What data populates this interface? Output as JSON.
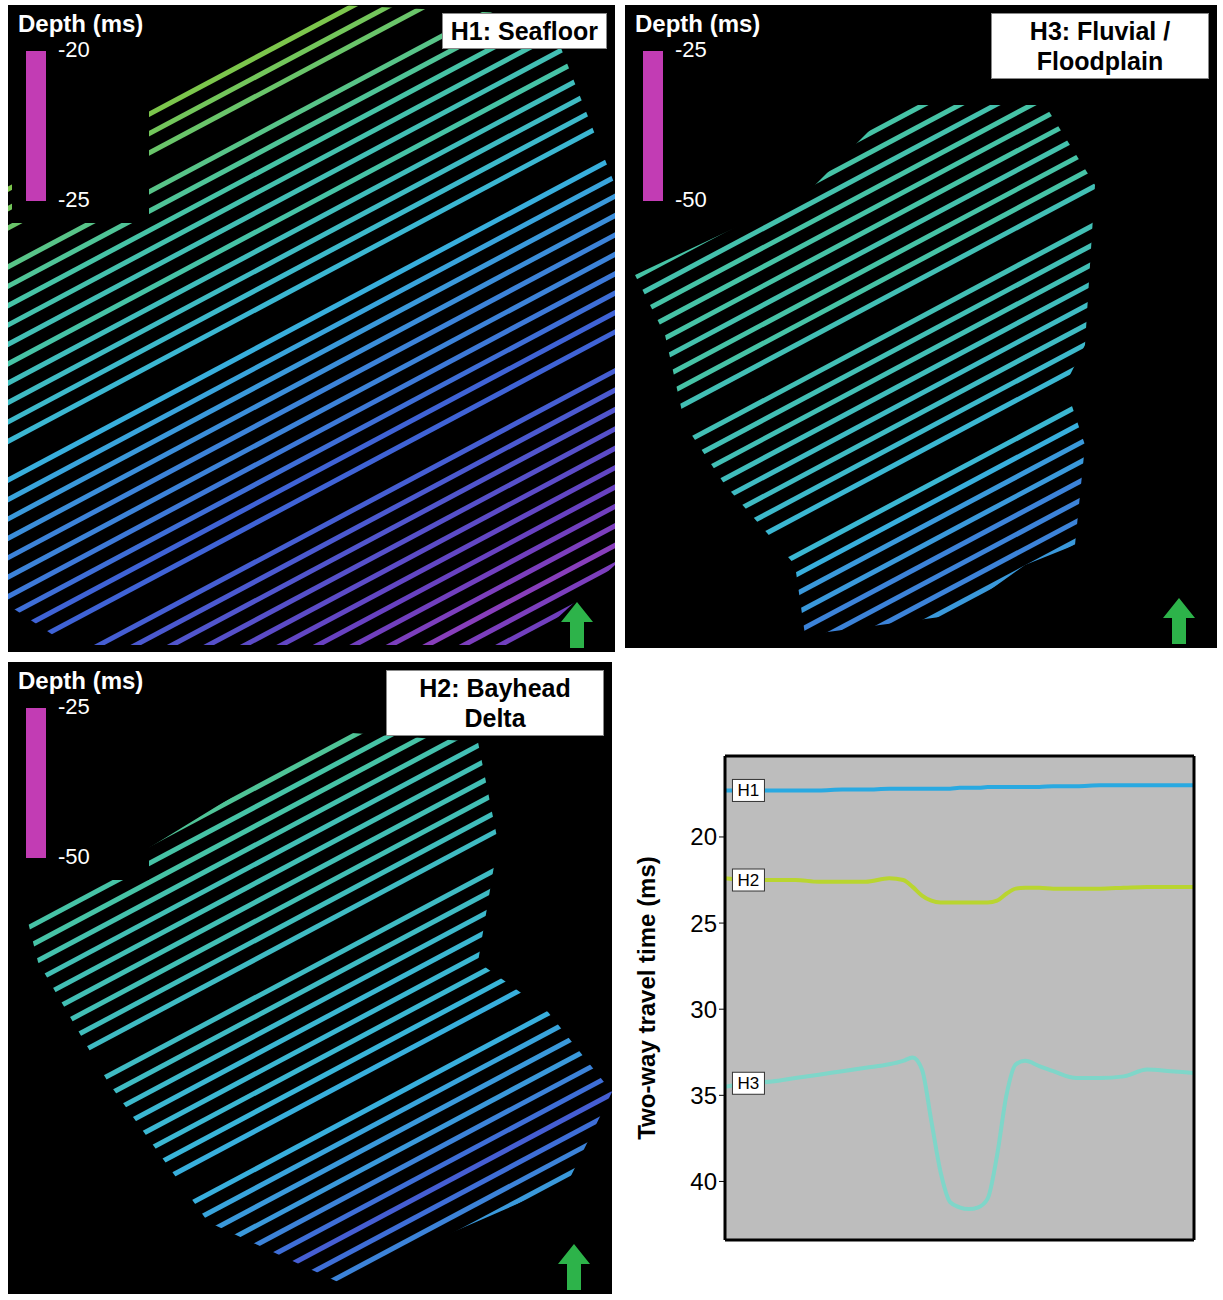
{
  "chart_data": [
    {
      "type": "map",
      "title": "H1: Seafloor",
      "colorbar": {
        "label": "Depth (ms)",
        "range": [
          -25,
          -20
        ],
        "ticks": [
          -20,
          -25
        ]
      },
      "tracks": [
        -21.4,
        -21.3,
        -21.2,
        -21.0,
        -20.8,
        -20.9,
        -20.6,
        -21.0,
        -21.2,
        -21.4,
        -21.5,
        -21.6,
        null,
        -21.8,
        -21.9,
        -22.0,
        -22.1,
        -22.2,
        -22.0,
        -22.3,
        -22.4,
        -22.5,
        -22.6,
        null,
        -22.8,
        -22.9,
        -23.0,
        -23.1,
        -23.2,
        -23.2,
        -23.3,
        -23.4,
        -23.5,
        -23.5,
        null,
        -23.6,
        -23.7,
        -23.8,
        -23.9,
        -24.0,
        -24.1,
        -24.2,
        -24.3,
        -24.4,
        -24.5,
        -24.4,
        -24.3,
        -24.2,
        -24.1,
        -24.0
      ]
    },
    {
      "type": "map",
      "title": "H3: Fluvial / Floodplain",
      "colorbar": {
        "label": "Depth (ms)",
        "range": [
          -50,
          -25
        ],
        "ticks": [
          -25,
          -50
        ]
      },
      "tracks": [
        -30,
        -32,
        -34,
        -35,
        -35,
        -35,
        -35,
        -35,
        -35.5,
        -35.5,
        -35,
        -35,
        null,
        -35,
        -35,
        -35.5,
        -35,
        -35,
        -35,
        -35.5,
        -35,
        -35,
        -36,
        null,
        -36,
        -36,
        -36,
        -36.5,
        -37,
        -37,
        -37.5,
        -38,
        null,
        -38,
        -39,
        -40,
        -40,
        -41,
        -41,
        -41,
        -40,
        -39,
        -38,
        -38,
        -37,
        -37,
        -37,
        -37,
        -37,
        -37
      ]
    },
    {
      "type": "map",
      "title": "H2: Bayhead Delta",
      "colorbar": {
        "label": "Depth (ms)",
        "range": [
          -50,
          -25
        ],
        "ticks": [
          -25,
          -50
        ]
      },
      "tracks": [
        -31,
        -31,
        -32,
        -32,
        -32,
        -32.5,
        -33,
        -33,
        -33,
        -33.5,
        -34,
        -34,
        null,
        -34.5,
        -35,
        -35,
        -35.5,
        -36,
        -36,
        -36,
        -36,
        -36.5,
        -37,
        null,
        -37,
        -37,
        -37.5,
        -38,
        -38,
        -38,
        -38.5,
        -39,
        null,
        -39,
        -39.5,
        -40,
        -40,
        -41,
        -42,
        -43,
        -42,
        -41,
        -40,
        -40,
        -39,
        -39,
        -39,
        -39,
        -39,
        -39
      ]
    },
    {
      "type": "line",
      "ylabel": "Two-way travel time (ms)",
      "x": [
        0,
        5,
        10,
        15,
        20,
        25,
        30,
        35,
        38,
        40,
        42,
        44,
        46,
        48,
        50,
        52,
        54,
        56,
        58,
        60,
        62,
        64,
        67,
        70,
        75,
        80,
        85,
        90,
        95,
        100
      ],
      "xlim": [
        0,
        100
      ],
      "ylim": [
        15.3,
        43.4
      ],
      "yticks": [
        20,
        25,
        30,
        35,
        40
      ],
      "tick_labels": "y",
      "series": [
        {
          "name": "H1",
          "color": "#29a9e1",
          "values": [
            17.3,
            17.3,
            17.3,
            17.3,
            17.3,
            17.25,
            17.25,
            17.2,
            17.2,
            17.2,
            17.2,
            17.2,
            17.2,
            17.2,
            17.15,
            17.15,
            17.15,
            17.1,
            17.1,
            17.1,
            17.1,
            17.1,
            17.1,
            17.05,
            17.05,
            17.0,
            17.0,
            17.0,
            17.0,
            17.0
          ]
        },
        {
          "name": "H2",
          "color": "#b9d530",
          "values": [
            22.4,
            22.5,
            22.5,
            22.5,
            22.6,
            22.6,
            22.6,
            22.4,
            22.5,
            22.9,
            23.4,
            23.7,
            23.8,
            23.8,
            23.8,
            23.8,
            23.8,
            23.8,
            23.7,
            23.3,
            23.0,
            22.95,
            22.95,
            23.0,
            23.0,
            23.0,
            22.95,
            22.9,
            22.9,
            22.9
          ]
        },
        {
          "name": "H3",
          "color": "#7fd6c9",
          "values": [
            34.5,
            34.3,
            34.2,
            34.0,
            33.8,
            33.6,
            33.4,
            33.2,
            33.0,
            32.8,
            33.5,
            36.5,
            39.5,
            41.2,
            41.5,
            41.6,
            41.5,
            41.0,
            38.5,
            35.0,
            33.2,
            33.0,
            33.3,
            33.6,
            34.0,
            34.0,
            33.9,
            33.5,
            33.6,
            33.7
          ]
        }
      ]
    }
  ]
}
